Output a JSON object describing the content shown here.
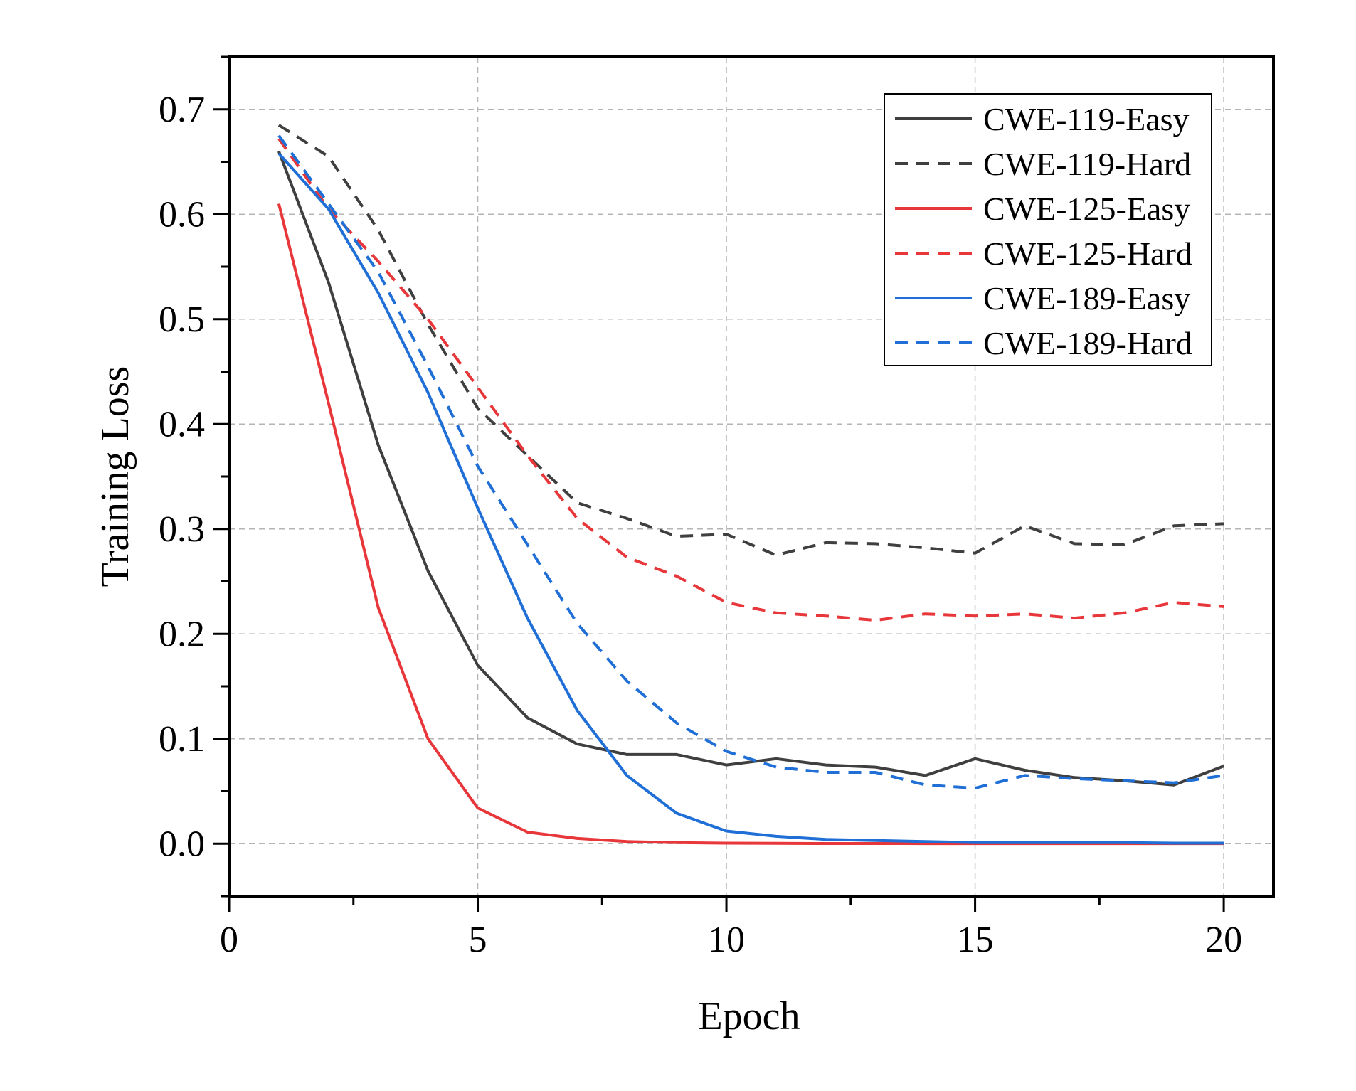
{
  "chart_data": {
    "type": "line",
    "xlabel": "Epoch",
    "ylabel": "Training Loss",
    "xlim": [
      0,
      21
    ],
    "ylim": [
      -0.05,
      0.75
    ],
    "x_ticks": [
      0,
      5,
      10,
      15,
      20
    ],
    "x_tick_labels": [
      "0",
      "5",
      "10",
      "15",
      "20"
    ],
    "y_ticks": [
      0.0,
      0.1,
      0.2,
      0.3,
      0.4,
      0.5,
      0.6,
      0.7
    ],
    "y_tick_labels": [
      "0.0",
      "0.1",
      "0.2",
      "0.3",
      "0.4",
      "0.5",
      "0.6",
      "0.7"
    ],
    "grid": true,
    "legend_position": "top-right",
    "x": [
      1,
      2,
      3,
      4,
      5,
      6,
      7,
      8,
      9,
      10,
      11,
      12,
      13,
      14,
      15,
      16,
      17,
      18,
      19,
      20
    ],
    "series": [
      {
        "name": "CWE-119-Easy",
        "color": "#3f3f3f",
        "style": "solid",
        "values": [
          0.66,
          0.535,
          0.38,
          0.26,
          0.17,
          0.12,
          0.095,
          0.085,
          0.085,
          0.075,
          0.081,
          0.075,
          0.073,
          0.065,
          0.081,
          0.07,
          0.063,
          0.06,
          0.056,
          0.074
        ]
      },
      {
        "name": "CWE-119-Hard",
        "color": "#3f3f3f",
        "style": "dashed",
        "values": [
          0.685,
          0.655,
          0.585,
          0.495,
          0.415,
          0.37,
          0.325,
          0.31,
          0.293,
          0.295,
          0.275,
          0.287,
          0.286,
          0.282,
          0.277,
          0.303,
          0.286,
          0.285,
          0.303,
          0.305
        ]
      },
      {
        "name": "CWE-125-Easy",
        "color": "#e8373a",
        "style": "solid",
        "values": [
          0.61,
          0.42,
          0.225,
          0.1,
          0.034,
          0.011,
          0.005,
          0.002,
          0.001,
          0.0005,
          0.0003,
          0.0002,
          0.0002,
          0.0001,
          0.0001,
          0.0001,
          0.0001,
          0.0001,
          0.0001,
          0.0001
        ]
      },
      {
        "name": "CWE-125-Hard",
        "color": "#e8373a",
        "style": "dashed",
        "values": [
          0.672,
          0.605,
          0.555,
          0.5,
          0.435,
          0.37,
          0.31,
          0.273,
          0.255,
          0.23,
          0.22,
          0.217,
          0.213,
          0.219,
          0.217,
          0.219,
          0.215,
          0.22,
          0.23,
          0.226
        ]
      },
      {
        "name": "CWE-189-Easy",
        "color": "#1f6fd6",
        "style": "solid",
        "values": [
          0.658,
          0.605,
          0.525,
          0.43,
          0.32,
          0.215,
          0.127,
          0.065,
          0.029,
          0.012,
          0.007,
          0.004,
          0.003,
          0.002,
          0.001,
          0.001,
          0.001,
          0.001,
          0.0005,
          0.0005
        ]
      },
      {
        "name": "CWE-189-Hard",
        "color": "#1f6fd6",
        "style": "dashed",
        "values": [
          0.675,
          0.61,
          0.545,
          0.455,
          0.36,
          0.285,
          0.21,
          0.155,
          0.115,
          0.088,
          0.073,
          0.068,
          0.068,
          0.056,
          0.053,
          0.065,
          0.062,
          0.06,
          0.058,
          0.065
        ]
      }
    ]
  }
}
